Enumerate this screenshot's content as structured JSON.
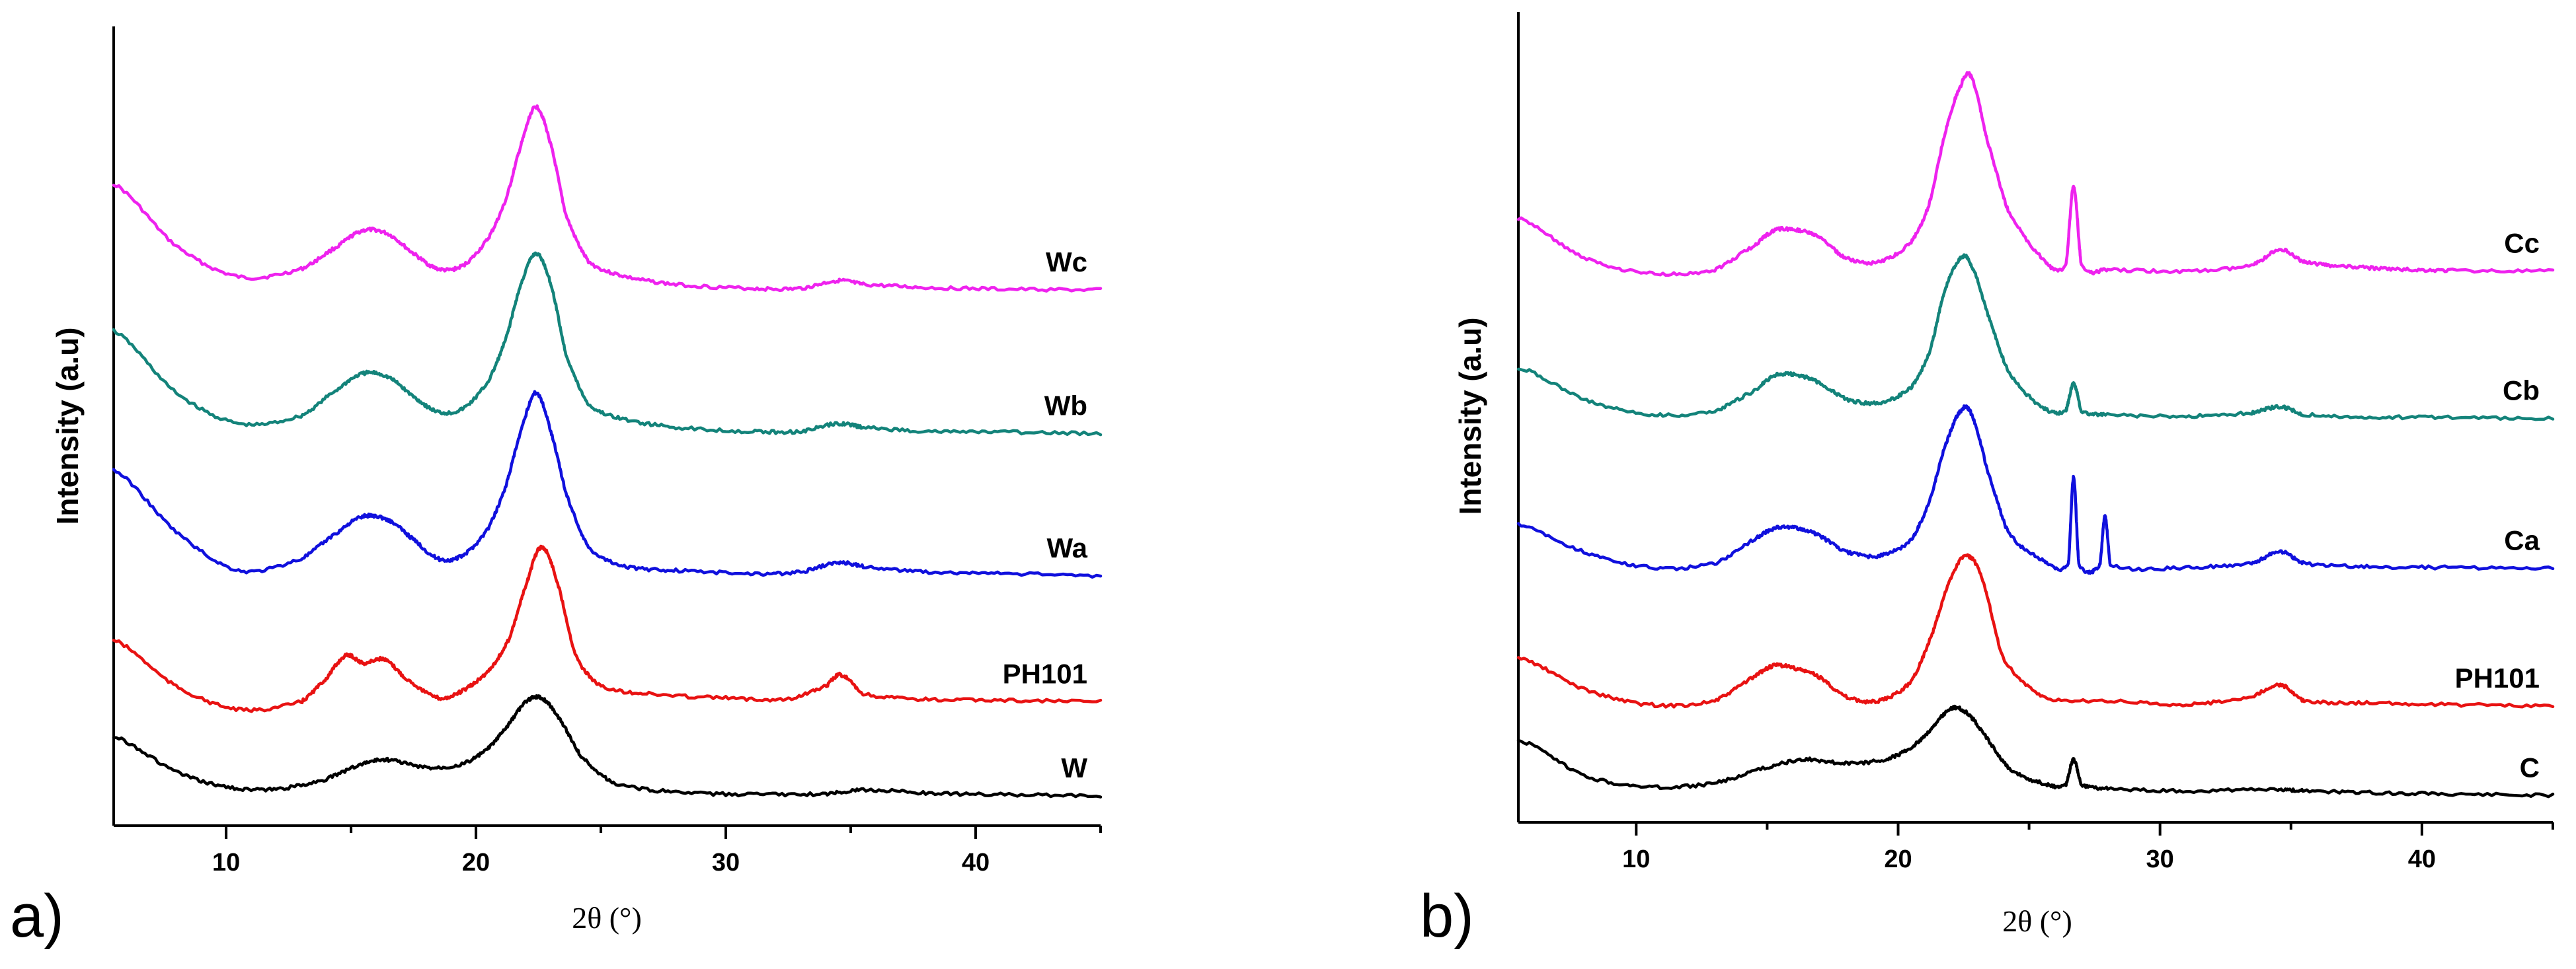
{
  "chart_data": [
    {
      "type": "line",
      "panel_label": "a)",
      "xlabel": "2θ (°)",
      "ylabel": "Intensity (a.u)",
      "xlim": [
        5.5,
        45
      ],
      "xticks": [
        10,
        20,
        30,
        40
      ],
      "y_tick_labels": false,
      "grid": false,
      "series": [
        {
          "name": "Wc",
          "color": "#ee22ee",
          "x": [
            5.5,
            8,
            10.5,
            13,
            14.5,
            15.5,
            16.5,
            17.5,
            18.5,
            19.5,
            20.5,
            21.2,
            21.8,
            22.4,
            23,
            23.6,
            24.5,
            26,
            28,
            31,
            33,
            34.5,
            35.5,
            38,
            41,
            45
          ],
          "y": [
            0.82,
            0.74,
            0.7,
            0.71,
            0.74,
            0.76,
            0.755,
            0.73,
            0.71,
            0.715,
            0.75,
            0.8,
            0.87,
            0.92,
            0.87,
            0.78,
            0.72,
            0.7,
            0.69,
            0.685,
            0.685,
            0.695,
            0.69,
            0.686,
            0.684,
            0.683
          ]
        },
        {
          "name": "Wb",
          "color": "#13837a",
          "x": [
            5.5,
            8,
            10.5,
            13,
            14.5,
            15.5,
            16.5,
            17.5,
            18.5,
            19.5,
            20.5,
            21.2,
            21.8,
            22.4,
            23,
            23.6,
            24.5,
            26,
            28,
            31,
            33,
            34.5,
            35.5,
            38,
            41,
            45
          ],
          "y": [
            0.63,
            0.55,
            0.51,
            0.52,
            0.555,
            0.575,
            0.57,
            0.545,
            0.525,
            0.53,
            0.565,
            0.62,
            0.69,
            0.73,
            0.69,
            0.6,
            0.535,
            0.515,
            0.505,
            0.5,
            0.5,
            0.51,
            0.505,
            0.5,
            0.499,
            0.497
          ]
        },
        {
          "name": "Wa",
          "color": "#1010dd",
          "x": [
            5.5,
            8,
            10.5,
            13,
            14.5,
            15.5,
            16.5,
            17.5,
            18.5,
            19.5,
            20.5,
            21.2,
            21.8,
            22.4,
            23,
            23.6,
            24.5,
            26,
            28,
            31,
            33,
            34.5,
            35.5,
            38,
            41,
            45
          ],
          "y": [
            0.45,
            0.37,
            0.32,
            0.335,
            0.37,
            0.39,
            0.385,
            0.36,
            0.335,
            0.34,
            0.375,
            0.43,
            0.5,
            0.55,
            0.5,
            0.42,
            0.35,
            0.325,
            0.32,
            0.316,
            0.318,
            0.33,
            0.325,
            0.318,
            0.316,
            0.313
          ]
        },
        {
          "name": "PH101",
          "color": "#e81212",
          "x": [
            5.5,
            8,
            10.5,
            13,
            14,
            14.8,
            15.5,
            16.3,
            17.2,
            18.5,
            19.5,
            20.5,
            21.3,
            22,
            22.6,
            23.2,
            24,
            25,
            27,
            30,
            32.5,
            34,
            34.6,
            35.5,
            38,
            41,
            45
          ],
          "y": [
            0.23,
            0.17,
            0.14,
            0.15,
            0.18,
            0.21,
            0.2,
            0.205,
            0.18,
            0.155,
            0.165,
            0.19,
            0.23,
            0.3,
            0.35,
            0.31,
            0.21,
            0.17,
            0.16,
            0.155,
            0.154,
            0.17,
            0.185,
            0.16,
            0.153,
            0.152,
            0.15
          ]
        },
        {
          "name": "W",
          "color": "#000000",
          "x": [
            5.5,
            8,
            10,
            12,
            14,
            15.5,
            16.5,
            18,
            19.5,
            20.5,
            21.3,
            22,
            22.6,
            23.3,
            24.2,
            25.5,
            28,
            31,
            34,
            35.5,
            38,
            41,
            45
          ],
          "y": [
            0.105,
            0.06,
            0.04,
            0.037,
            0.05,
            0.07,
            0.075,
            0.065,
            0.07,
            0.09,
            0.12,
            0.15,
            0.155,
            0.13,
            0.08,
            0.045,
            0.033,
            0.03,
            0.031,
            0.036,
            0.032,
            0.03,
            0.028
          ]
        }
      ]
    },
    {
      "type": "line",
      "panel_label": "b)",
      "xlabel": "2θ (°)",
      "ylabel": "Intensity (a.u)",
      "xlim": [
        5.5,
        45
      ],
      "xticks": [
        10,
        20,
        30,
        40
      ],
      "y_tick_labels": false,
      "grid": false,
      "series": [
        {
          "name": "Cc",
          "color": "#ee22ee",
          "x": [
            5.5,
            8,
            10.5,
            13,
            14.5,
            15.3,
            16.2,
            17,
            18,
            19.3,
            20.5,
            21.2,
            21.8,
            22.4,
            22.8,
            23.4,
            24.2,
            25.5,
            26.4,
            26.7,
            27,
            28,
            31,
            33.5,
            34.6,
            35.5,
            36.5,
            38,
            39.5,
            41,
            45
          ],
          "y": [
            0.76,
            0.71,
            0.69,
            0.695,
            0.725,
            0.745,
            0.745,
            0.735,
            0.71,
            0.705,
            0.73,
            0.78,
            0.87,
            0.93,
            0.94,
            0.86,
            0.77,
            0.71,
            0.7,
            0.8,
            0.7,
            0.695,
            0.693,
            0.7,
            0.72,
            0.705,
            0.7,
            0.697,
            0.695,
            0.694,
            0.693
          ]
        },
        {
          "name": "Cb",
          "color": "#13837a",
          "x": [
            5.5,
            8,
            10.5,
            13,
            14.5,
            15.3,
            16.2,
            17,
            18,
            19.3,
            20.5,
            21.2,
            21.8,
            22.4,
            22.8,
            23.4,
            24.2,
            25.5,
            26.4,
            26.7,
            27,
            28,
            31,
            33.5,
            34.6,
            35.5,
            38,
            41,
            45
          ],
          "y": [
            0.57,
            0.53,
            0.51,
            0.515,
            0.54,
            0.56,
            0.56,
            0.55,
            0.53,
            0.525,
            0.545,
            0.59,
            0.67,
            0.71,
            0.7,
            0.64,
            0.565,
            0.52,
            0.515,
            0.55,
            0.515,
            0.51,
            0.508,
            0.512,
            0.52,
            0.51,
            0.507,
            0.506,
            0.505
          ]
        },
        {
          "name": "Ca",
          "color": "#1010dd",
          "x": [
            5.5,
            8,
            10.5,
            13,
            14.5,
            15.3,
            16.2,
            17,
            18,
            19.3,
            20.5,
            21.2,
            21.8,
            22.4,
            22.8,
            23.4,
            24.2,
            25.5,
            26.5,
            26.7,
            26.9,
            27.7,
            27.9,
            28.1,
            31,
            33.5,
            34.6,
            35.5,
            38,
            41,
            45
          ],
          "y": [
            0.37,
            0.335,
            0.315,
            0.32,
            0.35,
            0.365,
            0.365,
            0.355,
            0.335,
            0.33,
            0.35,
            0.4,
            0.47,
            0.515,
            0.51,
            0.44,
            0.36,
            0.325,
            0.32,
            0.43,
            0.32,
            0.318,
            0.38,
            0.318,
            0.315,
            0.32,
            0.335,
            0.32,
            0.316,
            0.315,
            0.314
          ]
        },
        {
          "name": "PH101",
          "color": "#e81212",
          "x": [
            5.5,
            8,
            10.5,
            13,
            14.5,
            15.3,
            16.2,
            17,
            18,
            19.3,
            20.5,
            21.3,
            22,
            22.6,
            23.2,
            24,
            25.5,
            28,
            31,
            33.5,
            34.6,
            35.5,
            38,
            41,
            45
          ],
          "y": [
            0.2,
            0.16,
            0.14,
            0.145,
            0.175,
            0.19,
            0.185,
            0.175,
            0.15,
            0.145,
            0.17,
            0.23,
            0.3,
            0.33,
            0.3,
            0.2,
            0.15,
            0.145,
            0.14,
            0.15,
            0.165,
            0.145,
            0.142,
            0.14,
            0.138
          ]
        },
        {
          "name": "C",
          "color": "#000000",
          "x": [
            5.5,
            8,
            10.5,
            13,
            15,
            16.5,
            18,
            19.5,
            20.5,
            21.3,
            22,
            22.6,
            23.2,
            24.2,
            25.5,
            26.4,
            26.7,
            27,
            28,
            31,
            34.5,
            35.5,
            38,
            41,
            45
          ],
          "y": [
            0.095,
            0.05,
            0.035,
            0.04,
            0.06,
            0.07,
            0.065,
            0.07,
            0.085,
            0.11,
            0.135,
            0.13,
            0.105,
            0.06,
            0.04,
            0.038,
            0.07,
            0.038,
            0.033,
            0.03,
            0.032,
            0.03,
            0.028,
            0.026,
            0.024
          ]
        }
      ]
    }
  ]
}
